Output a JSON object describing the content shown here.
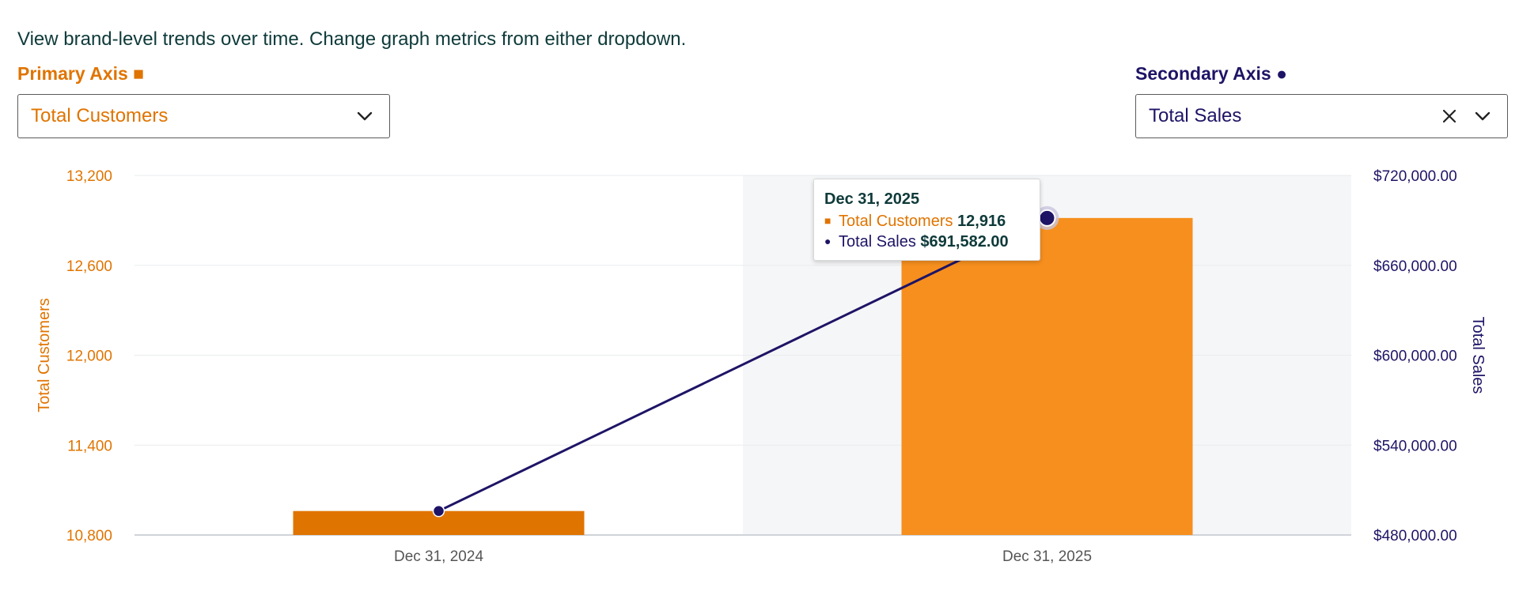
{
  "intro_text": "View brand-level trends over time. Change graph metrics from either dropdown.",
  "primary_axis": {
    "label": "Primary Axis ■",
    "selected": "Total Customers",
    "color": "#e07400"
  },
  "secondary_axis": {
    "label": "Secondary Axis ●",
    "selected": "Total Sales",
    "color": "#1e1466"
  },
  "tooltip": {
    "title": "Dec 31, 2025",
    "customers_marker": "■",
    "customers_label": "Total Customers",
    "customers_value": "12,916",
    "sales_marker": "●",
    "sales_label": "Total Sales",
    "sales_value": "$691,582.00"
  },
  "chart_data": {
    "type": "bar+line",
    "categories": [
      "Dec 31, 2024",
      "Dec 31, 2025"
    ],
    "highlighted_category": "Dec 31, 2025",
    "series": [
      {
        "name": "Total Customers",
        "type": "bar",
        "axis": "left",
        "values": [
          10960,
          12916
        ],
        "colors": [
          "#e07400",
          "#f68f1e"
        ]
      },
      {
        "name": "Total Sales",
        "type": "line",
        "axis": "right",
        "values": [
          496000,
          691582
        ],
        "color": "#1e1466"
      }
    ],
    "ylabel_left": "Total Customers",
    "ylabel_right": "Total Sales",
    "ylim_left": [
      10800,
      13200
    ],
    "ylim_right": [
      480000,
      720000
    ],
    "yticks_left": [
      "13,200",
      "12,600",
      "12,000",
      "11,400",
      "10,800"
    ],
    "yticks_right": [
      "$720,000.00",
      "$660,000.00",
      "$600,000.00",
      "$540,000.00",
      "$480,000.00"
    ],
    "grid": true
  }
}
